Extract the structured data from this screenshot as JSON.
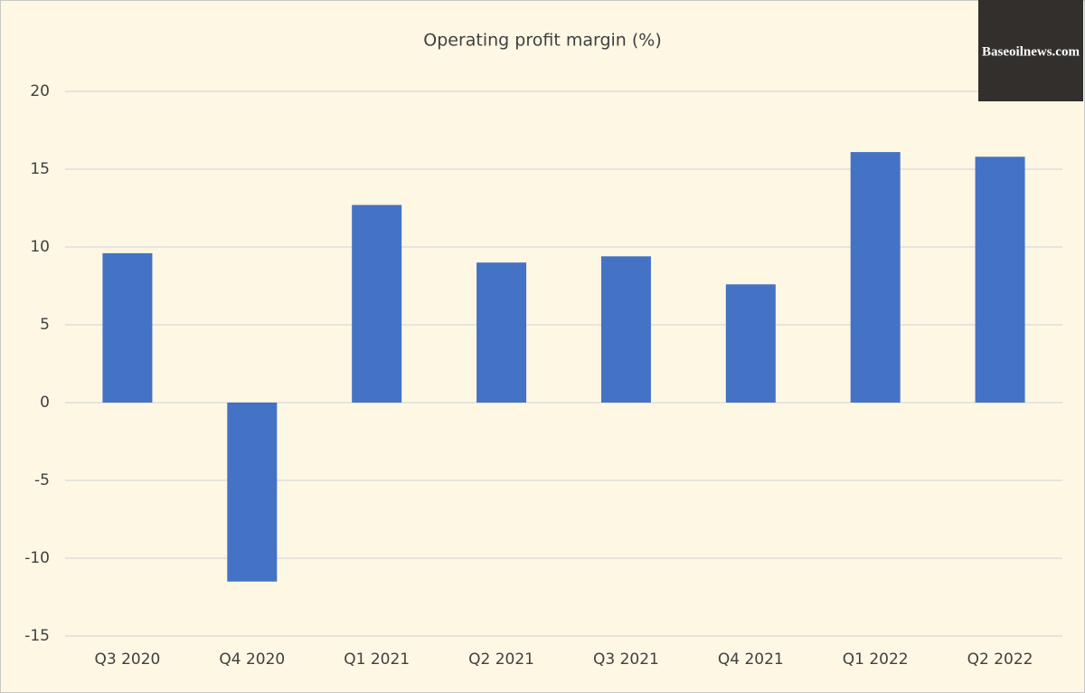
{
  "chart_data": {
    "type": "bar",
    "title": "Operating profit margin (%)",
    "watermark": "Baseoilnews.com",
    "categories": [
      "Q3 2020",
      "Q4 2020",
      "Q1 2021",
      "Q2 2021",
      "Q3 2021",
      "Q4 2021",
      "Q1 2022",
      "Q2 2022"
    ],
    "values": [
      9.6,
      -11.5,
      12.7,
      9.0,
      9.4,
      7.6,
      16.1,
      15.8
    ],
    "color": "#4472c4",
    "ylim": [
      -15,
      20
    ],
    "yticks": [
      -15,
      -10,
      -5,
      0,
      5,
      10,
      15,
      20
    ],
    "grid": true
  }
}
